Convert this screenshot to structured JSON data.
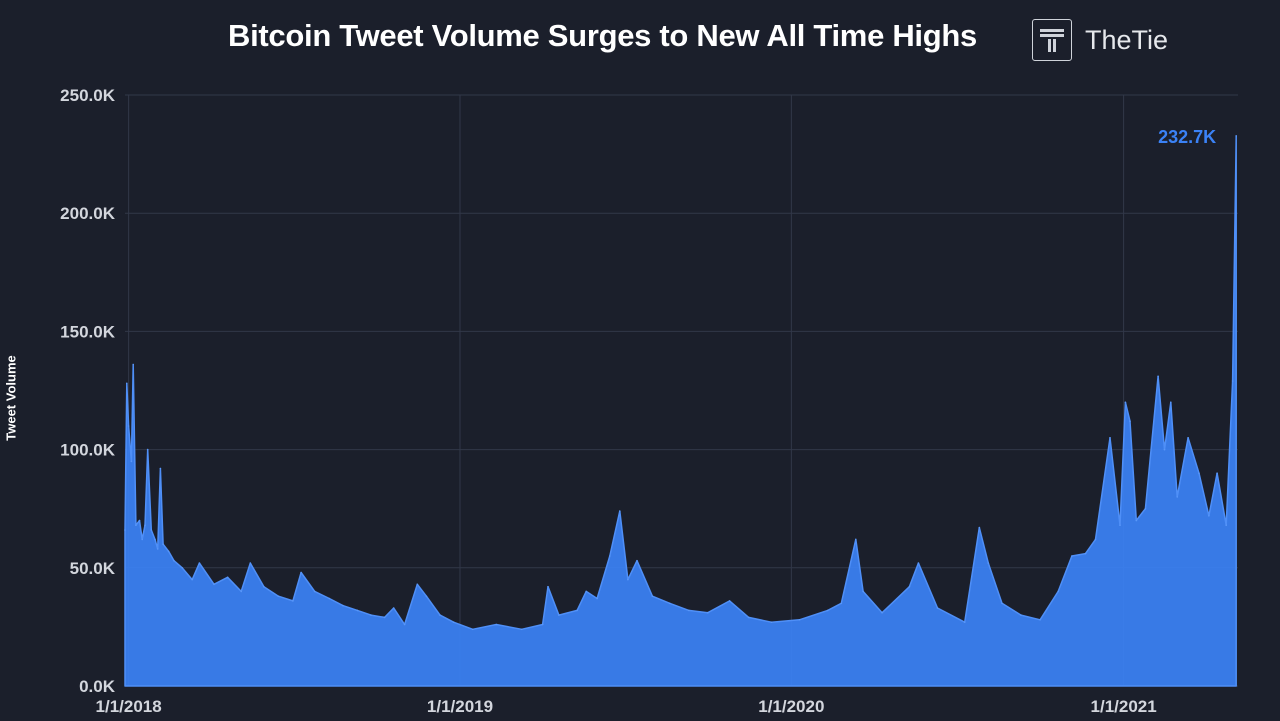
{
  "chart_data": {
    "type": "area",
    "title": "Bitcoin Tweet Volume Surges to New All Time Highs",
    "ylabel": "Tweet Volume",
    "xlabel": "",
    "ylim": [
      0,
      250000
    ],
    "xlim": [
      "2017-12-28",
      "2021-05-07"
    ],
    "y_ticks": [
      "0.0K",
      "50.0K",
      "100.0K",
      "150.0K",
      "200.0K",
      "250.0K"
    ],
    "x_ticks": [
      "1/1/2018",
      "1/1/2019",
      "1/1/2020",
      "1/1/2021"
    ],
    "grid": true,
    "series": [
      {
        "color": "#3b82f6",
        "points": [
          [
            "2017-12-28",
            66000
          ],
          [
            "2017-12-30",
            128000
          ],
          [
            "2018-01-01",
            110000
          ],
          [
            "2018-01-04",
            95000
          ],
          [
            "2018-01-06",
            136000
          ],
          [
            "2018-01-09",
            68000
          ],
          [
            "2018-01-13",
            70000
          ],
          [
            "2018-01-16",
            62000
          ],
          [
            "2018-01-19",
            68000
          ],
          [
            "2018-01-22",
            100000
          ],
          [
            "2018-01-26",
            66000
          ],
          [
            "2018-01-30",
            62000
          ],
          [
            "2018-02-02",
            58000
          ],
          [
            "2018-02-05",
            92000
          ],
          [
            "2018-02-08",
            60000
          ],
          [
            "2018-02-14",
            57000
          ],
          [
            "2018-02-20",
            53000
          ],
          [
            "2018-03-01",
            50000
          ],
          [
            "2018-03-12",
            45000
          ],
          [
            "2018-03-20",
            52000
          ],
          [
            "2018-04-05",
            43000
          ],
          [
            "2018-04-20",
            46000
          ],
          [
            "2018-05-05",
            40000
          ],
          [
            "2018-05-15",
            52000
          ],
          [
            "2018-05-30",
            42000
          ],
          [
            "2018-06-15",
            38000
          ],
          [
            "2018-07-01",
            36000
          ],
          [
            "2018-07-10",
            48000
          ],
          [
            "2018-07-25",
            40000
          ],
          [
            "2018-08-10",
            37000
          ],
          [
            "2018-08-25",
            34000
          ],
          [
            "2018-09-10",
            32000
          ],
          [
            "2018-09-25",
            30000
          ],
          [
            "2018-10-10",
            29000
          ],
          [
            "2018-10-20",
            33000
          ],
          [
            "2018-11-01",
            26000
          ],
          [
            "2018-11-15",
            43000
          ],
          [
            "2018-11-25",
            38000
          ],
          [
            "2018-12-10",
            30000
          ],
          [
            "2018-12-25",
            27000
          ],
          [
            "2019-01-15",
            24000
          ],
          [
            "2019-02-10",
            26000
          ],
          [
            "2019-03-10",
            24000
          ],
          [
            "2019-04-02",
            26000
          ],
          [
            "2019-04-08",
            42000
          ],
          [
            "2019-04-20",
            30000
          ],
          [
            "2019-05-10",
            32000
          ],
          [
            "2019-05-20",
            40000
          ],
          [
            "2019-06-01",
            37000
          ],
          [
            "2019-06-15",
            55000
          ],
          [
            "2019-06-26",
            74000
          ],
          [
            "2019-07-05",
            45000
          ],
          [
            "2019-07-15",
            53000
          ],
          [
            "2019-08-01",
            38000
          ],
          [
            "2019-08-20",
            35000
          ],
          [
            "2019-09-10",
            32000
          ],
          [
            "2019-10-01",
            31000
          ],
          [
            "2019-10-25",
            36000
          ],
          [
            "2019-11-15",
            29000
          ],
          [
            "2019-12-10",
            27000
          ],
          [
            "2020-01-10",
            28000
          ],
          [
            "2020-02-10",
            32000
          ],
          [
            "2020-02-25",
            35000
          ],
          [
            "2020-03-12",
            62000
          ],
          [
            "2020-03-20",
            40000
          ],
          [
            "2020-04-10",
            31000
          ],
          [
            "2020-05-10",
            42000
          ],
          [
            "2020-05-20",
            52000
          ],
          [
            "2020-06-10",
            33000
          ],
          [
            "2020-07-10",
            27000
          ],
          [
            "2020-07-26",
            67000
          ],
          [
            "2020-08-05",
            52000
          ],
          [
            "2020-08-20",
            35000
          ],
          [
            "2020-09-10",
            30000
          ],
          [
            "2020-10-01",
            28000
          ],
          [
            "2020-10-21",
            40000
          ],
          [
            "2020-11-05",
            55000
          ],
          [
            "2020-11-20",
            56000
          ],
          [
            "2020-12-01",
            62000
          ],
          [
            "2020-12-17",
            105000
          ],
          [
            "2020-12-28",
            68000
          ],
          [
            "2021-01-03",
            120000
          ],
          [
            "2021-01-08",
            112000
          ],
          [
            "2021-01-15",
            70000
          ],
          [
            "2021-01-25",
            75000
          ],
          [
            "2021-02-08",
            131000
          ],
          [
            "2021-02-15",
            100000
          ],
          [
            "2021-02-22",
            120000
          ],
          [
            "2021-03-01",
            80000
          ],
          [
            "2021-03-13",
            105000
          ],
          [
            "2021-03-25",
            90000
          ],
          [
            "2021-04-05",
            72000
          ],
          [
            "2021-04-14",
            90000
          ],
          [
            "2021-04-24",
            68000
          ],
          [
            "2021-05-01",
            129000
          ],
          [
            "2021-05-05",
            232700
          ]
        ]
      }
    ],
    "annotations": [
      {
        "text": "232.7K",
        "x": "2021-05-05",
        "y": 232700
      }
    ]
  },
  "brand": {
    "name": "TheTie",
    "icon": "thetie-logo-icon"
  }
}
